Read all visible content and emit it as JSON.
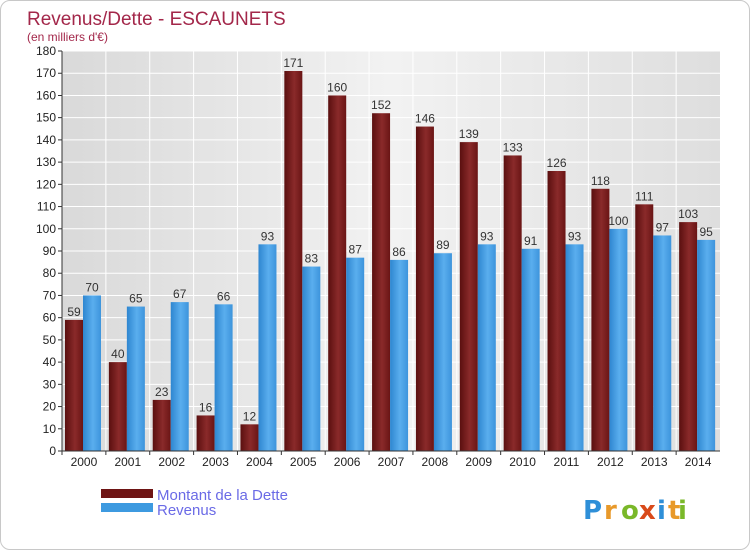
{
  "chart_data": {
    "type": "bar",
    "title": "Revenus/Dette - ESCAUNETS",
    "subtitle": "(en milliers d'€)",
    "categories": [
      "2000",
      "2001",
      "2002",
      "2003",
      "2004",
      "2005",
      "2006",
      "2007",
      "2008",
      "2009",
      "2010",
      "2011",
      "2012",
      "2013",
      "2014"
    ],
    "series": [
      {
        "name": "Montant de la Dette",
        "color": "#7a1a1a",
        "values": [
          59,
          40,
          23,
          16,
          12,
          171,
          160,
          152,
          146,
          139,
          133,
          126,
          118,
          111,
          103
        ]
      },
      {
        "name": "Revenus",
        "color": "#3d9ae0",
        "values": [
          70,
          65,
          67,
          66,
          93,
          83,
          87,
          86,
          89,
          93,
          91,
          93,
          100,
          97,
          95
        ]
      }
    ],
    "ylim": [
      0,
      180
    ],
    "yticks": [
      0,
      10,
      20,
      30,
      40,
      50,
      60,
      70,
      80,
      90,
      100,
      110,
      120,
      130,
      140,
      150,
      160,
      170,
      180
    ],
    "grid": true,
    "legend_position": "bottom-left"
  },
  "logo": {
    "letters": [
      "P",
      "r",
      "o",
      "x",
      "i",
      "t",
      "i"
    ],
    "colors": [
      "#2e8fd8",
      "#e8992a",
      "#7ab829",
      "#d94a1a",
      "#2e8fd8",
      "#e8992a",
      "#7ab829"
    ]
  }
}
